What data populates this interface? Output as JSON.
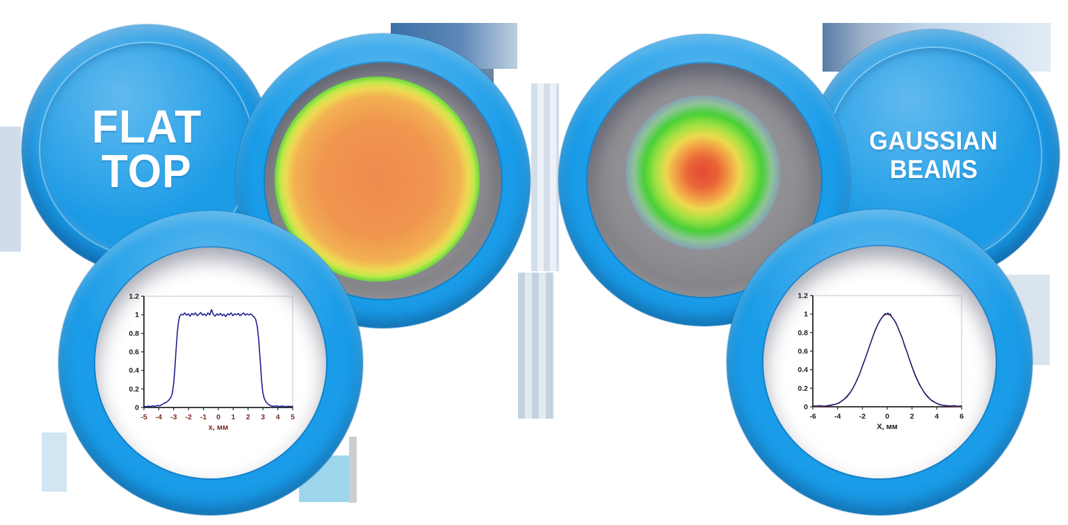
{
  "page": {
    "background": "#ffffff",
    "accent_blue": "#1b9ce9",
    "accent_blue_dark": "#0a63ac",
    "accent_blue_light": "#54c0f4"
  },
  "left_group": {
    "title_lines": [
      "FLAT",
      "TOP"
    ],
    "beam": {
      "label": "flat-top intensity distribution",
      "stops": [
        [
          "#ef8b4d",
          0
        ],
        [
          "#f0964f",
          40
        ],
        [
          "#f2b152",
          57
        ],
        [
          "#eeda52",
          63
        ],
        [
          "#c2e84b",
          67
        ],
        [
          "#44d139",
          72
        ],
        [
          "#3bd03b",
          76
        ],
        [
          "#5b8ce8",
          81
        ],
        [
          "#8a6cc9",
          85
        ],
        [
          "rgba(144,144,148,0)",
          91
        ]
      ]
    }
  },
  "right_group": {
    "title_lines": [
      "GAUSSIAN",
      "BEAMS"
    ],
    "beam": {
      "label": "gaussian intensity distribution",
      "stops": [
        [
          "#e44a32",
          0
        ],
        [
          "#ea6438",
          14
        ],
        [
          "#f29a45",
          24
        ],
        [
          "#edd94d",
          34
        ],
        [
          "#a0e142",
          44
        ],
        [
          "#48d037",
          54
        ],
        [
          "rgba(141,202,150,0.9)",
          63
        ],
        [
          "rgba(125,125,215,0.8)",
          77
        ],
        [
          "rgba(135,110,200,0.55)",
          87
        ],
        [
          "rgba(144,144,148,0)",
          100
        ]
      ]
    }
  },
  "chart_data": [
    {
      "id": "flat-top-profile",
      "type": "line",
      "title": "",
      "xlabel": "х, мм",
      "ylabel": "",
      "xlim": [
        -5,
        5
      ],
      "ylim": [
        0,
        1.2
      ],
      "xticks": [
        -5,
        -4,
        -3,
        -2,
        -1,
        0,
        1,
        2,
        3,
        4,
        5
      ],
      "yticks": [
        0,
        0.2,
        0.4,
        0.6,
        0.8,
        1,
        1.2
      ],
      "grid": false,
      "axis_color": "#222222",
      "frame_color": "#b5b5b5",
      "x_tick_color": "#7a2a1d",
      "y_tick_color": "#1c1c1c",
      "xlabel_color": "#7a2a1d",
      "series": [
        {
          "name": "measured flat-top profile",
          "color": "#1c1c8f",
          "width": 1.6,
          "points": [
            [
              -5,
              0.012
            ],
            [
              -4.85,
              0.008
            ],
            [
              -4.7,
              0.015
            ],
            [
              -4.55,
              0.01
            ],
            [
              -4.4,
              0.018
            ],
            [
              -4.25,
              0.012
            ],
            [
              -4.1,
              0.02
            ],
            [
              -3.95,
              0.018
            ],
            [
              -3.8,
              0.03
            ],
            [
              -3.65,
              0.045
            ],
            [
              -3.5,
              0.055
            ],
            [
              -3.35,
              0.075
            ],
            [
              -3.2,
              0.105
            ],
            [
              -3.1,
              0.15
            ],
            [
              -3.0,
              0.26
            ],
            [
              -2.92,
              0.42
            ],
            [
              -2.84,
              0.62
            ],
            [
              -2.76,
              0.8
            ],
            [
              -2.68,
              0.92
            ],
            [
              -2.6,
              0.985
            ],
            [
              -2.5,
              1.005
            ],
            [
              -2.38,
              0.998
            ],
            [
              -2.26,
              1.02
            ],
            [
              -2.14,
              0.995
            ],
            [
              -2.02,
              1.01
            ],
            [
              -1.9,
              0.985
            ],
            [
              -1.78,
              1.015
            ],
            [
              -1.66,
              1.0
            ],
            [
              -1.54,
              1.02
            ],
            [
              -1.42,
              0.99
            ],
            [
              -1.3,
              1.005
            ],
            [
              -1.18,
              1.025
            ],
            [
              -1.06,
              0.995
            ],
            [
              -0.94,
              1.01
            ],
            [
              -0.82,
              0.99
            ],
            [
              -0.7,
              1.02
            ],
            [
              -0.58,
              1.0
            ],
            [
              -0.46,
              1.055
            ],
            [
              -0.34,
              1.005
            ],
            [
              -0.22,
              0.985
            ],
            [
              -0.1,
              1.01
            ],
            [
              0.02,
              0.995
            ],
            [
              0.14,
              1.015
            ],
            [
              0.26,
              0.99
            ],
            [
              0.38,
              1.005
            ],
            [
              0.5,
              0.98
            ],
            [
              0.62,
              1.01
            ],
            [
              0.74,
              1.0
            ],
            [
              0.86,
              1.02
            ],
            [
              0.98,
              0.99
            ],
            [
              1.1,
              1.01
            ],
            [
              1.22,
              1.0
            ],
            [
              1.34,
              1.015
            ],
            [
              1.46,
              0.99
            ],
            [
              1.58,
              1.005
            ],
            [
              1.7,
              1.02
            ],
            [
              1.82,
              0.995
            ],
            [
              1.94,
              1.01
            ],
            [
              2.06,
              0.998
            ],
            [
              2.18,
              1.01
            ],
            [
              2.3,
              0.99
            ],
            [
              2.42,
              0.975
            ],
            [
              2.52,
              0.945
            ],
            [
              2.62,
              0.87
            ],
            [
              2.72,
              0.72
            ],
            [
              2.82,
              0.5
            ],
            [
              2.9,
              0.3
            ],
            [
              2.98,
              0.17
            ],
            [
              3.08,
              0.1
            ],
            [
              3.2,
              0.06
            ],
            [
              3.35,
              0.035
            ],
            [
              3.5,
              0.02
            ],
            [
              3.7,
              0.012
            ],
            [
              3.9,
              0.018
            ],
            [
              4.1,
              0.01
            ],
            [
              4.3,
              0.016
            ],
            [
              4.5,
              0.008
            ],
            [
              4.7,
              0.014
            ],
            [
              4.85,
              0.01
            ],
            [
              5,
              0.012
            ]
          ]
        }
      ]
    },
    {
      "id": "gaussian-profile",
      "type": "line",
      "title": "",
      "xlabel": "X, мм",
      "ylabel": "",
      "xlim": [
        -6,
        6
      ],
      "ylim": [
        0,
        1.2
      ],
      "xticks": [
        -6,
        -4,
        -2,
        0,
        2,
        4,
        6
      ],
      "yticks": [
        0,
        0.2,
        0.4,
        0.6,
        0.8,
        1,
        1.2
      ],
      "grid": false,
      "axis_color": "#222222",
      "frame_color": "#b5b5b5",
      "x_tick_color": "#1c1c1c",
      "y_tick_color": "#1c1c1c",
      "xlabel_color": "#1c1c1c",
      "series": [
        {
          "name": "gaussian fit",
          "color": "#9e3b32",
          "width": 1.4,
          "points": [
            [
              -6,
              0.001
            ],
            [
              -5.5,
              0.002
            ],
            [
              -5,
              0.006
            ],
            [
              -4.5,
              0.015
            ],
            [
              -4,
              0.036
            ],
            [
              -3.5,
              0.078
            ],
            [
              -3,
              0.153
            ],
            [
              -2.75,
              0.207
            ],
            [
              -2.5,
              0.272
            ],
            [
              -2.25,
              0.348
            ],
            [
              -2,
              0.435
            ],
            [
              -1.75,
              0.528
            ],
            [
              -1.5,
              0.626
            ],
            [
              -1.25,
              0.722
            ],
            [
              -1,
              0.812
            ],
            [
              -0.75,
              0.889
            ],
            [
              -0.5,
              0.949
            ],
            [
              -0.25,
              0.987
            ],
            [
              0,
              1.0
            ],
            [
              0.25,
              0.987
            ],
            [
              0.5,
              0.949
            ],
            [
              0.75,
              0.889
            ],
            [
              1,
              0.812
            ],
            [
              1.25,
              0.722
            ],
            [
              1.5,
              0.626
            ],
            [
              1.75,
              0.528
            ],
            [
              2,
              0.435
            ],
            [
              2.25,
              0.348
            ],
            [
              2.5,
              0.272
            ],
            [
              2.75,
              0.207
            ],
            [
              3,
              0.153
            ],
            [
              3.5,
              0.078
            ],
            [
              4,
              0.036
            ],
            [
              4.5,
              0.015
            ],
            [
              5,
              0.006
            ],
            [
              5.5,
              0.002
            ],
            [
              6,
              0.001
            ]
          ]
        },
        {
          "name": "measured gaussian profile",
          "color": "#18186e",
          "width": 1.5,
          "points": [
            [
              -6,
              0.01
            ],
            [
              -5.7,
              0.008
            ],
            [
              -5.4,
              0.012
            ],
            [
              -5.1,
              0.006
            ],
            [
              -4.8,
              0.012
            ],
            [
              -4.5,
              0.02
            ],
            [
              -4.2,
              0.026
            ],
            [
              -3.9,
              0.04
            ],
            [
              -3.6,
              0.068
            ],
            [
              -3.3,
              0.1
            ],
            [
              -3.0,
              0.148
            ],
            [
              -2.8,
              0.193
            ],
            [
              -2.6,
              0.242
            ],
            [
              -2.4,
              0.3
            ],
            [
              -2.2,
              0.362
            ],
            [
              -2.0,
              0.44
            ],
            [
              -1.8,
              0.512
            ],
            [
              -1.6,
              0.588
            ],
            [
              -1.4,
              0.664
            ],
            [
              -1.2,
              0.742
            ],
            [
              -1.0,
              0.818
            ],
            [
              -0.85,
              0.862
            ],
            [
              -0.7,
              0.902
            ],
            [
              -0.55,
              0.938
            ],
            [
              -0.4,
              0.968
            ],
            [
              -0.25,
              0.992
            ],
            [
              -0.15,
              1.005
            ],
            [
              -0.05,
              0.998
            ],
            [
              0.05,
              1.012
            ],
            [
              0.15,
              0.995
            ],
            [
              0.25,
              1.0
            ],
            [
              0.4,
              0.962
            ],
            [
              0.55,
              0.94
            ],
            [
              0.7,
              0.905
            ],
            [
              0.85,
              0.858
            ],
            [
              1.0,
              0.808
            ],
            [
              1.2,
              0.748
            ],
            [
              1.4,
              0.658
            ],
            [
              1.6,
              0.592
            ],
            [
              1.8,
              0.508
            ],
            [
              2.0,
              0.43
            ],
            [
              2.2,
              0.358
            ],
            [
              2.4,
              0.295
            ],
            [
              2.6,
              0.238
            ],
            [
              2.8,
              0.196
            ],
            [
              3.0,
              0.15
            ],
            [
              3.3,
              0.102
            ],
            [
              3.6,
              0.065
            ],
            [
              3.9,
              0.042
            ],
            [
              4.2,
              0.024
            ],
            [
              4.5,
              0.016
            ],
            [
              4.8,
              0.012
            ],
            [
              5.1,
              0.008
            ],
            [
              5.4,
              0.012
            ],
            [
              5.7,
              0.006
            ],
            [
              6,
              0.01
            ]
          ]
        }
      ]
    }
  ]
}
